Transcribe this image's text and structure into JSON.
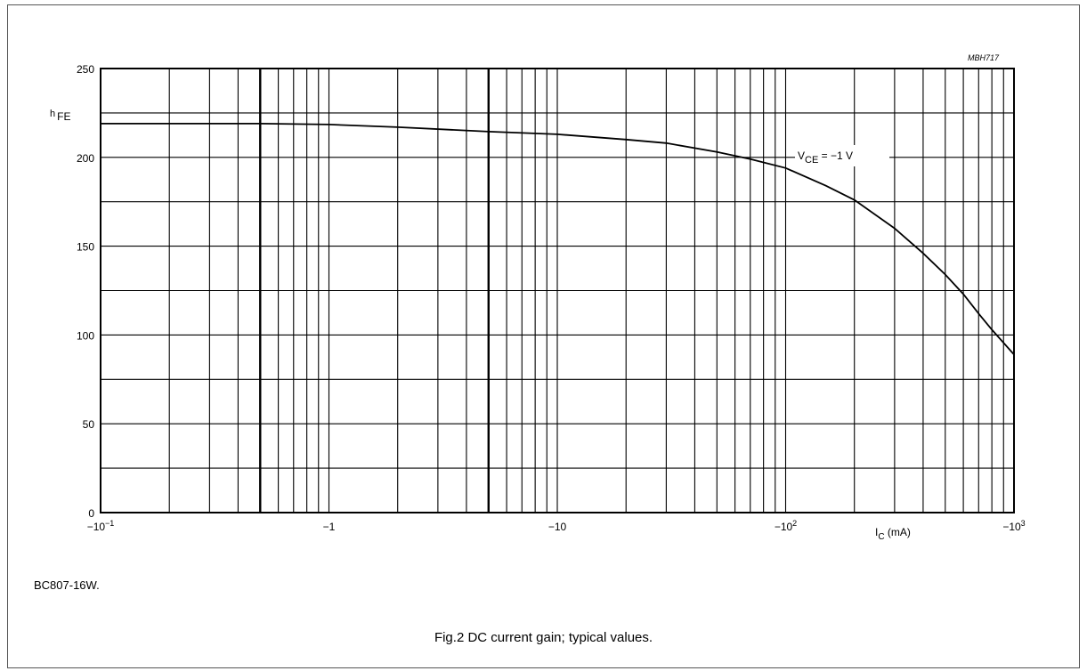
{
  "chart_data": {
    "type": "line",
    "x_scale": "log",
    "y_scale": "linear",
    "xlim": [
      -0.1,
      -1000
    ],
    "ylim": [
      0,
      250
    ],
    "grid": true,
    "y_ticks": [
      {
        "value": 0,
        "label": "0"
      },
      {
        "value": 50,
        "label": "50"
      },
      {
        "value": 100,
        "label": "100"
      },
      {
        "value": 150,
        "label": "150"
      },
      {
        "value": 200,
        "label": "200"
      },
      {
        "value": 250,
        "label": "250"
      }
    ],
    "x_ticks": [
      {
        "value": -0.1,
        "mant": "−10",
        "exp": "−1"
      },
      {
        "value": -1,
        "mant": "−1",
        "exp": ""
      },
      {
        "value": -10,
        "mant": "−10",
        "exp": ""
      },
      {
        "value": -100,
        "mant": "−10",
        "exp": "2"
      },
      {
        "value": -1000,
        "mant": "−10",
        "exp": "3"
      }
    ],
    "ylabel": {
      "main": "h",
      "sub": "FE"
    },
    "xlabel": {
      "main": "I",
      "sub": "C",
      "rest": " (mA)"
    },
    "series": [
      {
        "label": {
          "main": "V",
          "sub": "CE",
          "rest": " = −1 V"
        },
        "color": "#000000",
        "points": [
          [
            -0.1,
            219
          ],
          [
            -0.2,
            219
          ],
          [
            -0.5,
            219
          ],
          [
            -1,
            218.5
          ],
          [
            -2,
            217
          ],
          [
            -5,
            214.5
          ],
          [
            -10,
            213
          ],
          [
            -20,
            210
          ],
          [
            -30,
            208
          ],
          [
            -50,
            203
          ],
          [
            -70,
            199
          ],
          [
            -100,
            194
          ],
          [
            -150,
            184
          ],
          [
            -200,
            176
          ],
          [
            -300,
            160
          ],
          [
            -400,
            146
          ],
          [
            -500,
            134
          ],
          [
            -600,
            123
          ],
          [
            -700,
            112
          ],
          [
            -800,
            103
          ],
          [
            -1000,
            89
          ]
        ]
      }
    ]
  },
  "figure_code": "MBH717",
  "variant_label": "BC807-16W.",
  "caption": "Fig.2  DC current gain; typical values."
}
